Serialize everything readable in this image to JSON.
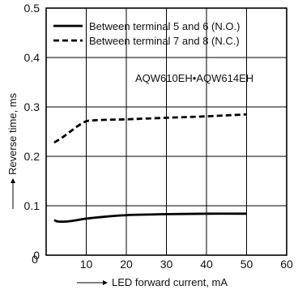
{
  "chart_data": {
    "type": "line",
    "title": "",
    "xlabel": "LED forward current, mA",
    "ylabel": "Reverse time, ms",
    "xlim": [
      0,
      60
    ],
    "ylim": [
      0,
      0.5
    ],
    "x_ticks": [
      "0",
      "10",
      "20",
      "30",
      "40",
      "50",
      "60"
    ],
    "y_ticks": [
      "0",
      "0.1",
      "0.2",
      "0.3",
      "0.4",
      "0.5"
    ],
    "grid": true,
    "legend_position": "top-left",
    "annotation": "AQW610EH•AQW614EH",
    "series": [
      {
        "name": "Between terminal 5 and 6 (N.O.)",
        "style": "solid",
        "color": "#000000",
        "x": [
          2,
          3,
          5,
          7,
          10,
          15,
          20,
          30,
          40,
          50
        ],
        "y": [
          0.071,
          0.068,
          0.068,
          0.07,
          0.074,
          0.078,
          0.081,
          0.083,
          0.084,
          0.084
        ]
      },
      {
        "name": "Between terminal 7 and 8 (N.C.)",
        "style": "dashed",
        "color": "#000000",
        "x": [
          2,
          4,
          6,
          8,
          10,
          12,
          15,
          20,
          30,
          40,
          50
        ],
        "y": [
          0.228,
          0.238,
          0.25,
          0.262,
          0.271,
          0.273,
          0.274,
          0.275,
          0.278,
          0.281,
          0.285
        ]
      }
    ]
  }
}
